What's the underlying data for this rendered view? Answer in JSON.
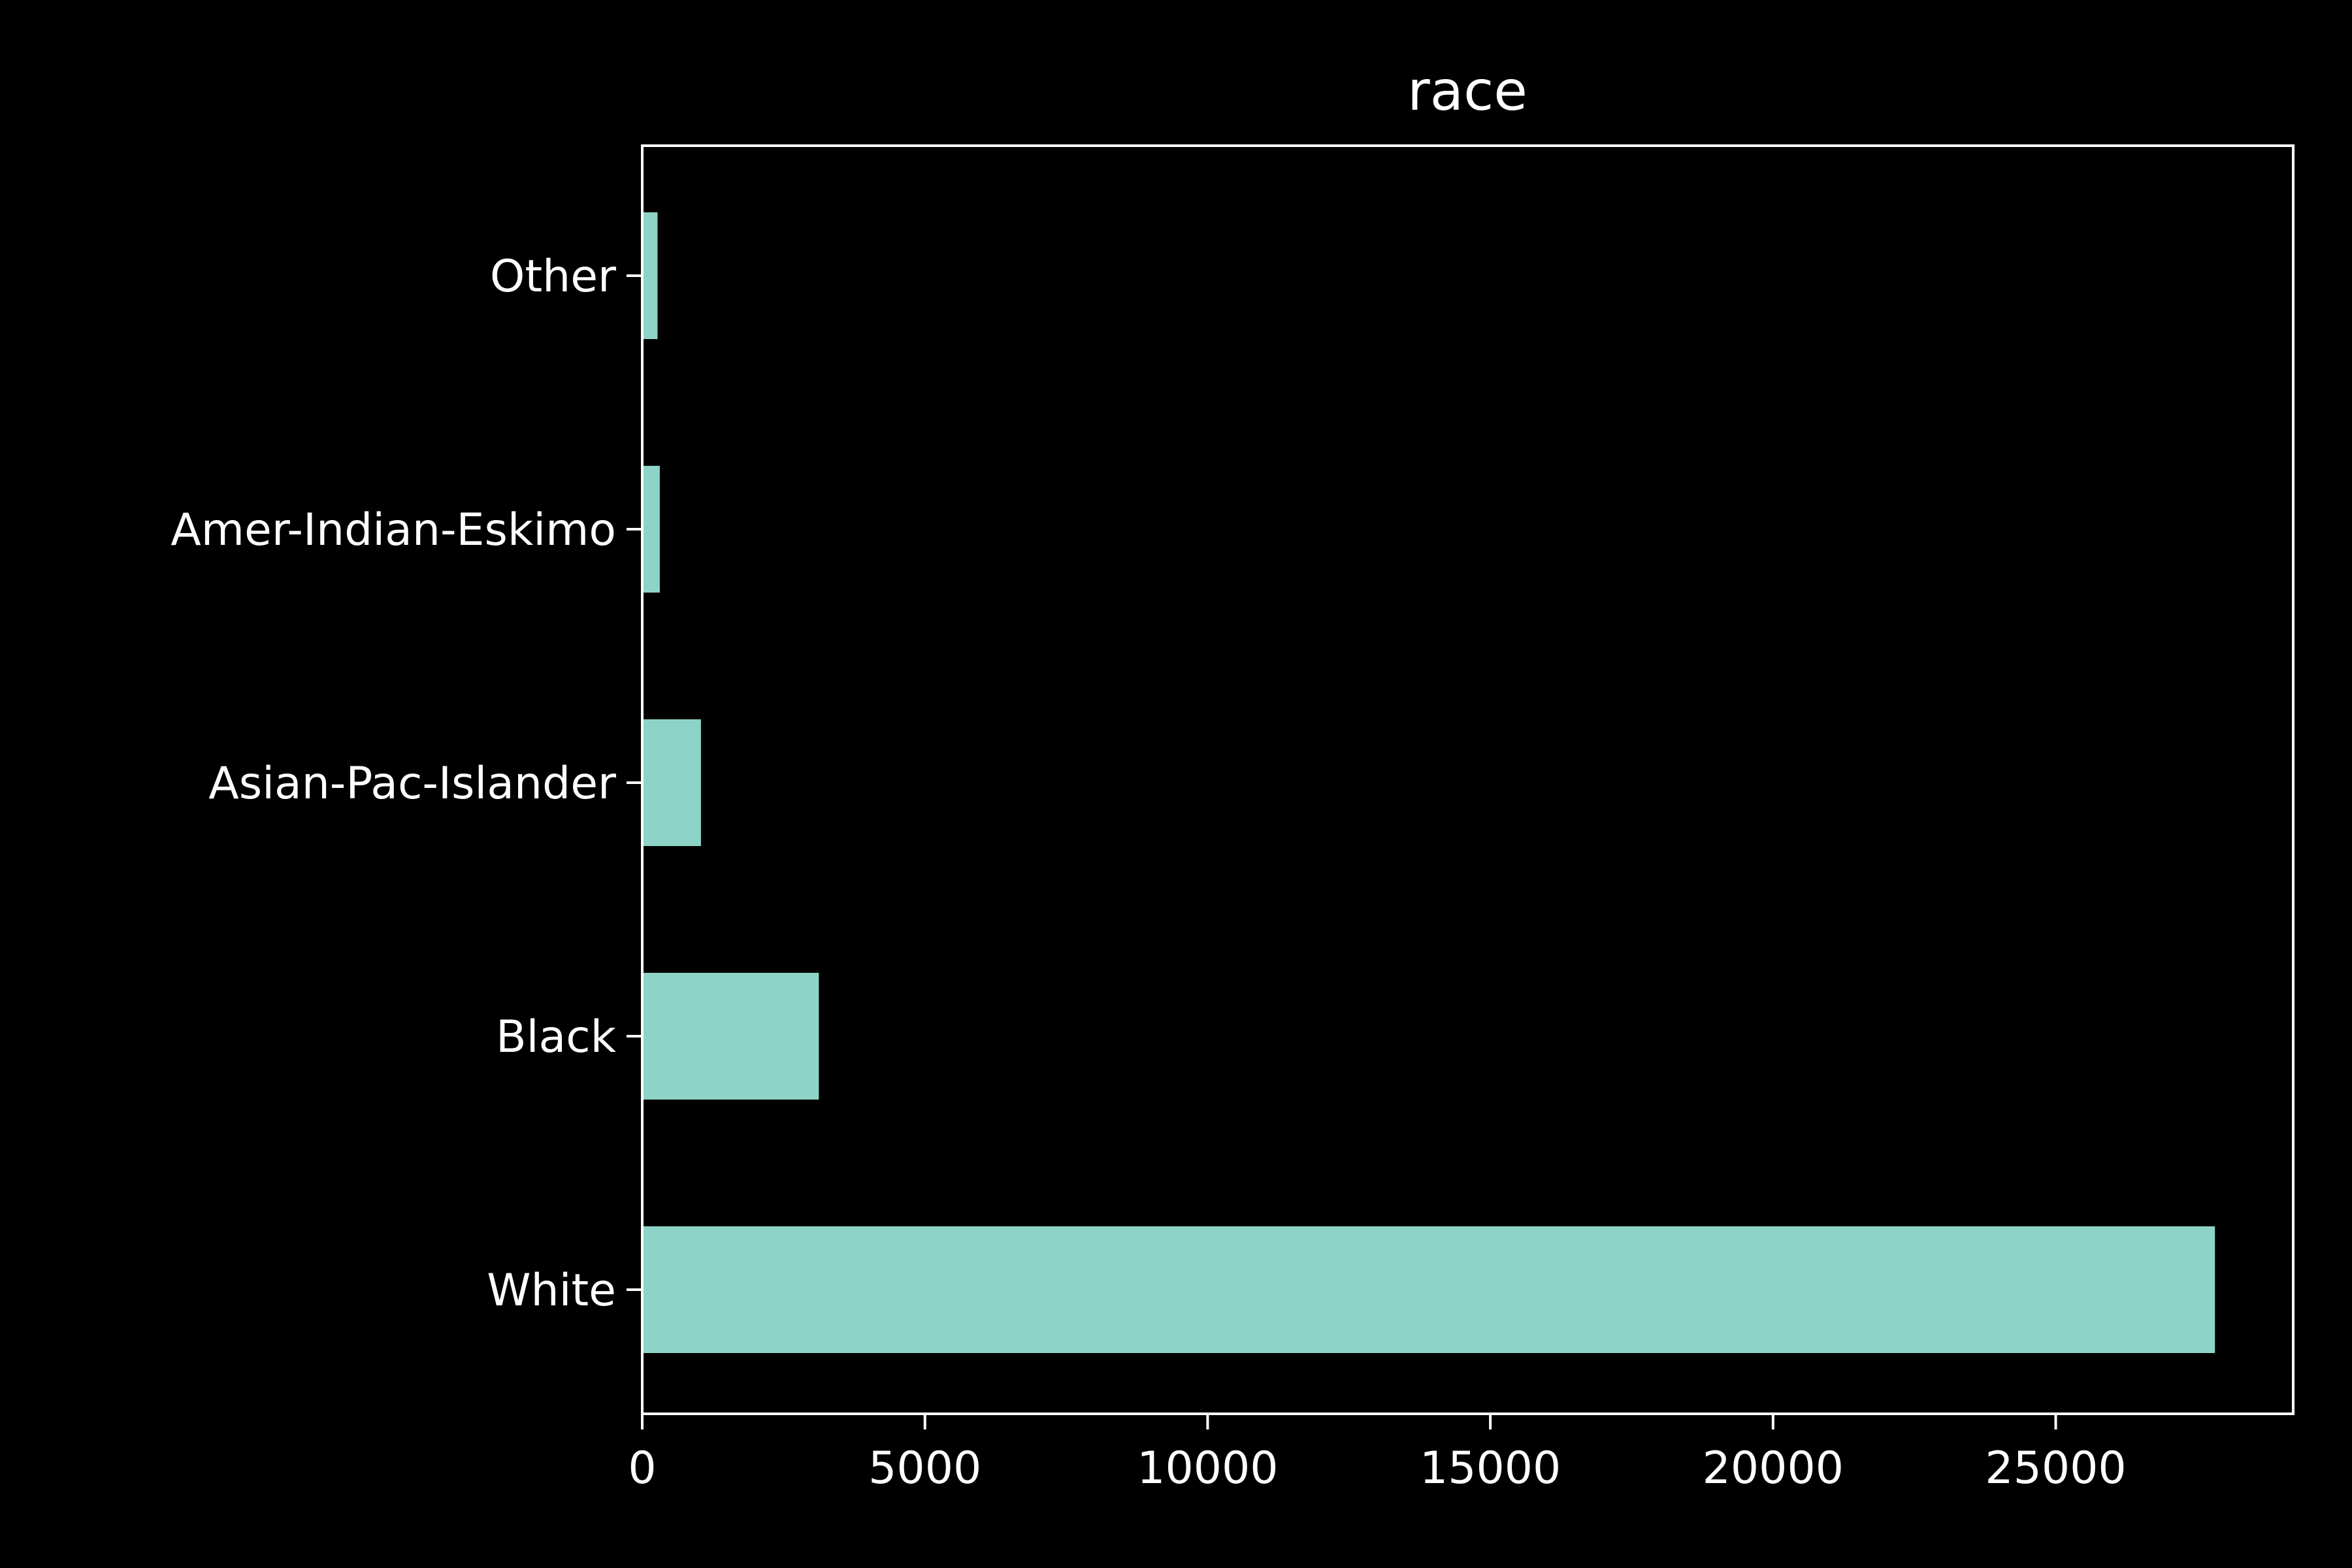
{
  "chart_data": {
    "type": "bar",
    "orientation": "horizontal",
    "title": "race",
    "xlabel": "",
    "ylabel": "",
    "categories": [
      "White",
      "Black",
      "Asian-Pac-Islander",
      "Amer-Indian-Eskimo",
      "Other"
    ],
    "values": [
      27816,
      3124,
      1039,
      311,
      271
    ],
    "xlim": [
      0,
      29200
    ],
    "xticks": [
      0,
      5000,
      10000,
      15000,
      20000,
      25000
    ],
    "grid": false,
    "legend": "none",
    "colors": {
      "background": "#000000",
      "bar": "#8dd3c7",
      "axes": "#ffffff",
      "text": "#ffffff"
    }
  }
}
